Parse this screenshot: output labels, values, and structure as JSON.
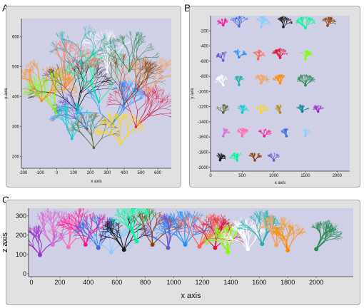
{
  "figure": {
    "panel_letters": [
      "A",
      "B",
      "C"
    ]
  },
  "colors": {
    "plot_bg": "#cfcfe6",
    "frame_bg": "#e1e1e1",
    "palette": [
      "#1a1a1a",
      "#7fff00",
      "#00ced1",
      "#ff1493",
      "#1e90ff",
      "#ff8c00",
      "#9932cc",
      "#00fa9a",
      "#ffffff",
      "#ffd700",
      "#4169e1",
      "#ff6347",
      "#2e8b57",
      "#da70d6",
      "#8b4513",
      "#20b2aa",
      "#b8860b",
      "#87cefa",
      "#dc143c",
      "#556b2f",
      "#ff69b4",
      "#6a5acd",
      "#f4a460",
      "#008b8b"
    ]
  },
  "chart_data": [
    {
      "panel": "A",
      "type": "scatter",
      "title": "",
      "xlabel": "x axis",
      "ylabel": "y axis",
      "xlim": [
        -210,
        680
      ],
      "ylim": [
        160,
        660
      ],
      "xticks": [
        -200,
        -100,
        0,
        100,
        200,
        300,
        400,
        500,
        600
      ],
      "yticks": [
        200,
        300,
        400,
        500,
        600
      ],
      "grid": false,
      "legend": "none",
      "neurons": [
        {
          "x": 120,
          "y": 400,
          "r": 130
        },
        {
          "x": 250,
          "y": 430,
          "r": 140
        },
        {
          "x": 400,
          "y": 420,
          "r": 130
        },
        {
          "x": 180,
          "y": 330,
          "r": 110
        },
        {
          "x": 330,
          "y": 350,
          "r": 120
        },
        {
          "x": 50,
          "y": 470,
          "r": 120
        },
        {
          "x": 470,
          "y": 340,
          "r": 120
        },
        {
          "x": 0,
          "y": 380,
          "r": 110
        },
        {
          "x": 300,
          "y": 520,
          "r": 110
        },
        {
          "x": 150,
          "y": 540,
          "r": 100
        },
        {
          "x": 540,
          "y": 450,
          "r": 100
        },
        {
          "x": -90,
          "y": 420,
          "r": 100
        },
        {
          "x": 430,
          "y": 520,
          "r": 100
        },
        {
          "x": 220,
          "y": 260,
          "r": 90
        },
        {
          "x": 90,
          "y": 290,
          "r": 90
        },
        {
          "x": 380,
          "y": 270,
          "r": 80
        }
      ]
    },
    {
      "panel": "B",
      "type": "scatter",
      "title": "",
      "xlabel": "x axis",
      "ylabel": "y axis",
      "xlim": [
        0,
        2200
      ],
      "ylim": [
        -2050,
        0
      ],
      "xticks": [
        0,
        500,
        1000,
        1500,
        2000
      ],
      "yticks": [
        -200,
        -400,
        -600,
        -800,
        -1000,
        -1200,
        -1400,
        -1600,
        -1800,
        -2000
      ],
      "grid": false,
      "legend": "none",
      "neurons": [
        {
          "x": 200,
          "y": -100,
          "r": 70
        },
        {
          "x": 450,
          "y": -100,
          "r": 110
        },
        {
          "x": 800,
          "y": -110,
          "r": 110
        },
        {
          "x": 1150,
          "y": -110,
          "r": 110
        },
        {
          "x": 1500,
          "y": -120,
          "r": 120
        },
        {
          "x": 1850,
          "y": -100,
          "r": 90
        },
        {
          "x": 200,
          "y": -560,
          "r": 90
        },
        {
          "x": 450,
          "y": -520,
          "r": 80
        },
        {
          "x": 750,
          "y": -540,
          "r": 90
        },
        {
          "x": 1100,
          "y": -520,
          "r": 100
        },
        {
          "x": 1500,
          "y": -540,
          "r": 90
        },
        {
          "x": 200,
          "y": -880,
          "r": 100
        },
        {
          "x": 450,
          "y": -880,
          "r": 90
        },
        {
          "x": 800,
          "y": -860,
          "r": 90
        },
        {
          "x": 1100,
          "y": -860,
          "r": 90
        },
        {
          "x": 1500,
          "y": -880,
          "r": 110
        },
        {
          "x": 200,
          "y": -1250,
          "r": 80
        },
        {
          "x": 500,
          "y": -1250,
          "r": 80
        },
        {
          "x": 800,
          "y": -1250,
          "r": 80
        },
        {
          "x": 1100,
          "y": -1250,
          "r": 80
        },
        {
          "x": 1450,
          "y": -1240,
          "r": 70
        },
        {
          "x": 1700,
          "y": -1240,
          "r": 70
        },
        {
          "x": 200,
          "y": -1560,
          "r": 80
        },
        {
          "x": 500,
          "y": -1560,
          "r": 80
        },
        {
          "x": 850,
          "y": -1560,
          "r": 80
        },
        {
          "x": 1200,
          "y": -1560,
          "r": 80
        },
        {
          "x": 1500,
          "y": -1560,
          "r": 70
        },
        {
          "x": 150,
          "y": -1880,
          "r": 70
        },
        {
          "x": 420,
          "y": -1880,
          "r": 80
        },
        {
          "x": 700,
          "y": -1880,
          "r": 80
        },
        {
          "x": 1000,
          "y": -1880,
          "r": 80
        }
      ]
    },
    {
      "panel": "C",
      "type": "scatter",
      "title": "",
      "xlabel": "x axis",
      "ylabel": "z axis",
      "xlim": [
        -20,
        2260
      ],
      "ylim": [
        -15,
        340
      ],
      "xticks": [
        0,
        200,
        400,
        600,
        800,
        1000,
        1200,
        1400,
        1600,
        1800,
        2000
      ],
      "yticks": [
        0,
        100,
        200,
        300
      ],
      "grid": false,
      "legend": "none",
      "neurons": [
        {
          "x": 60,
          "y": 140,
          "r": 120
        },
        {
          "x": 150,
          "y": 200,
          "r": 140
        },
        {
          "x": 260,
          "y": 180,
          "r": 120
        },
        {
          "x": 380,
          "y": 200,
          "r": 140
        },
        {
          "x": 470,
          "y": 180,
          "r": 130
        },
        {
          "x": 560,
          "y": 150,
          "r": 110
        },
        {
          "x": 650,
          "y": 170,
          "r": 130
        },
        {
          "x": 740,
          "y": 220,
          "r": 150
        },
        {
          "x": 850,
          "y": 200,
          "r": 140
        },
        {
          "x": 960,
          "y": 180,
          "r": 130
        },
        {
          "x": 1080,
          "y": 200,
          "r": 140
        },
        {
          "x": 1180,
          "y": 190,
          "r": 140
        },
        {
          "x": 1290,
          "y": 180,
          "r": 130
        },
        {
          "x": 1380,
          "y": 150,
          "r": 110
        },
        {
          "x": 1520,
          "y": 170,
          "r": 120
        },
        {
          "x": 1620,
          "y": 200,
          "r": 130
        },
        {
          "x": 1720,
          "y": 190,
          "r": 120
        },
        {
          "x": 1800,
          "y": 160,
          "r": 110
        },
        {
          "x": 2000,
          "y": 170,
          "r": 120
        }
      ]
    }
  ]
}
